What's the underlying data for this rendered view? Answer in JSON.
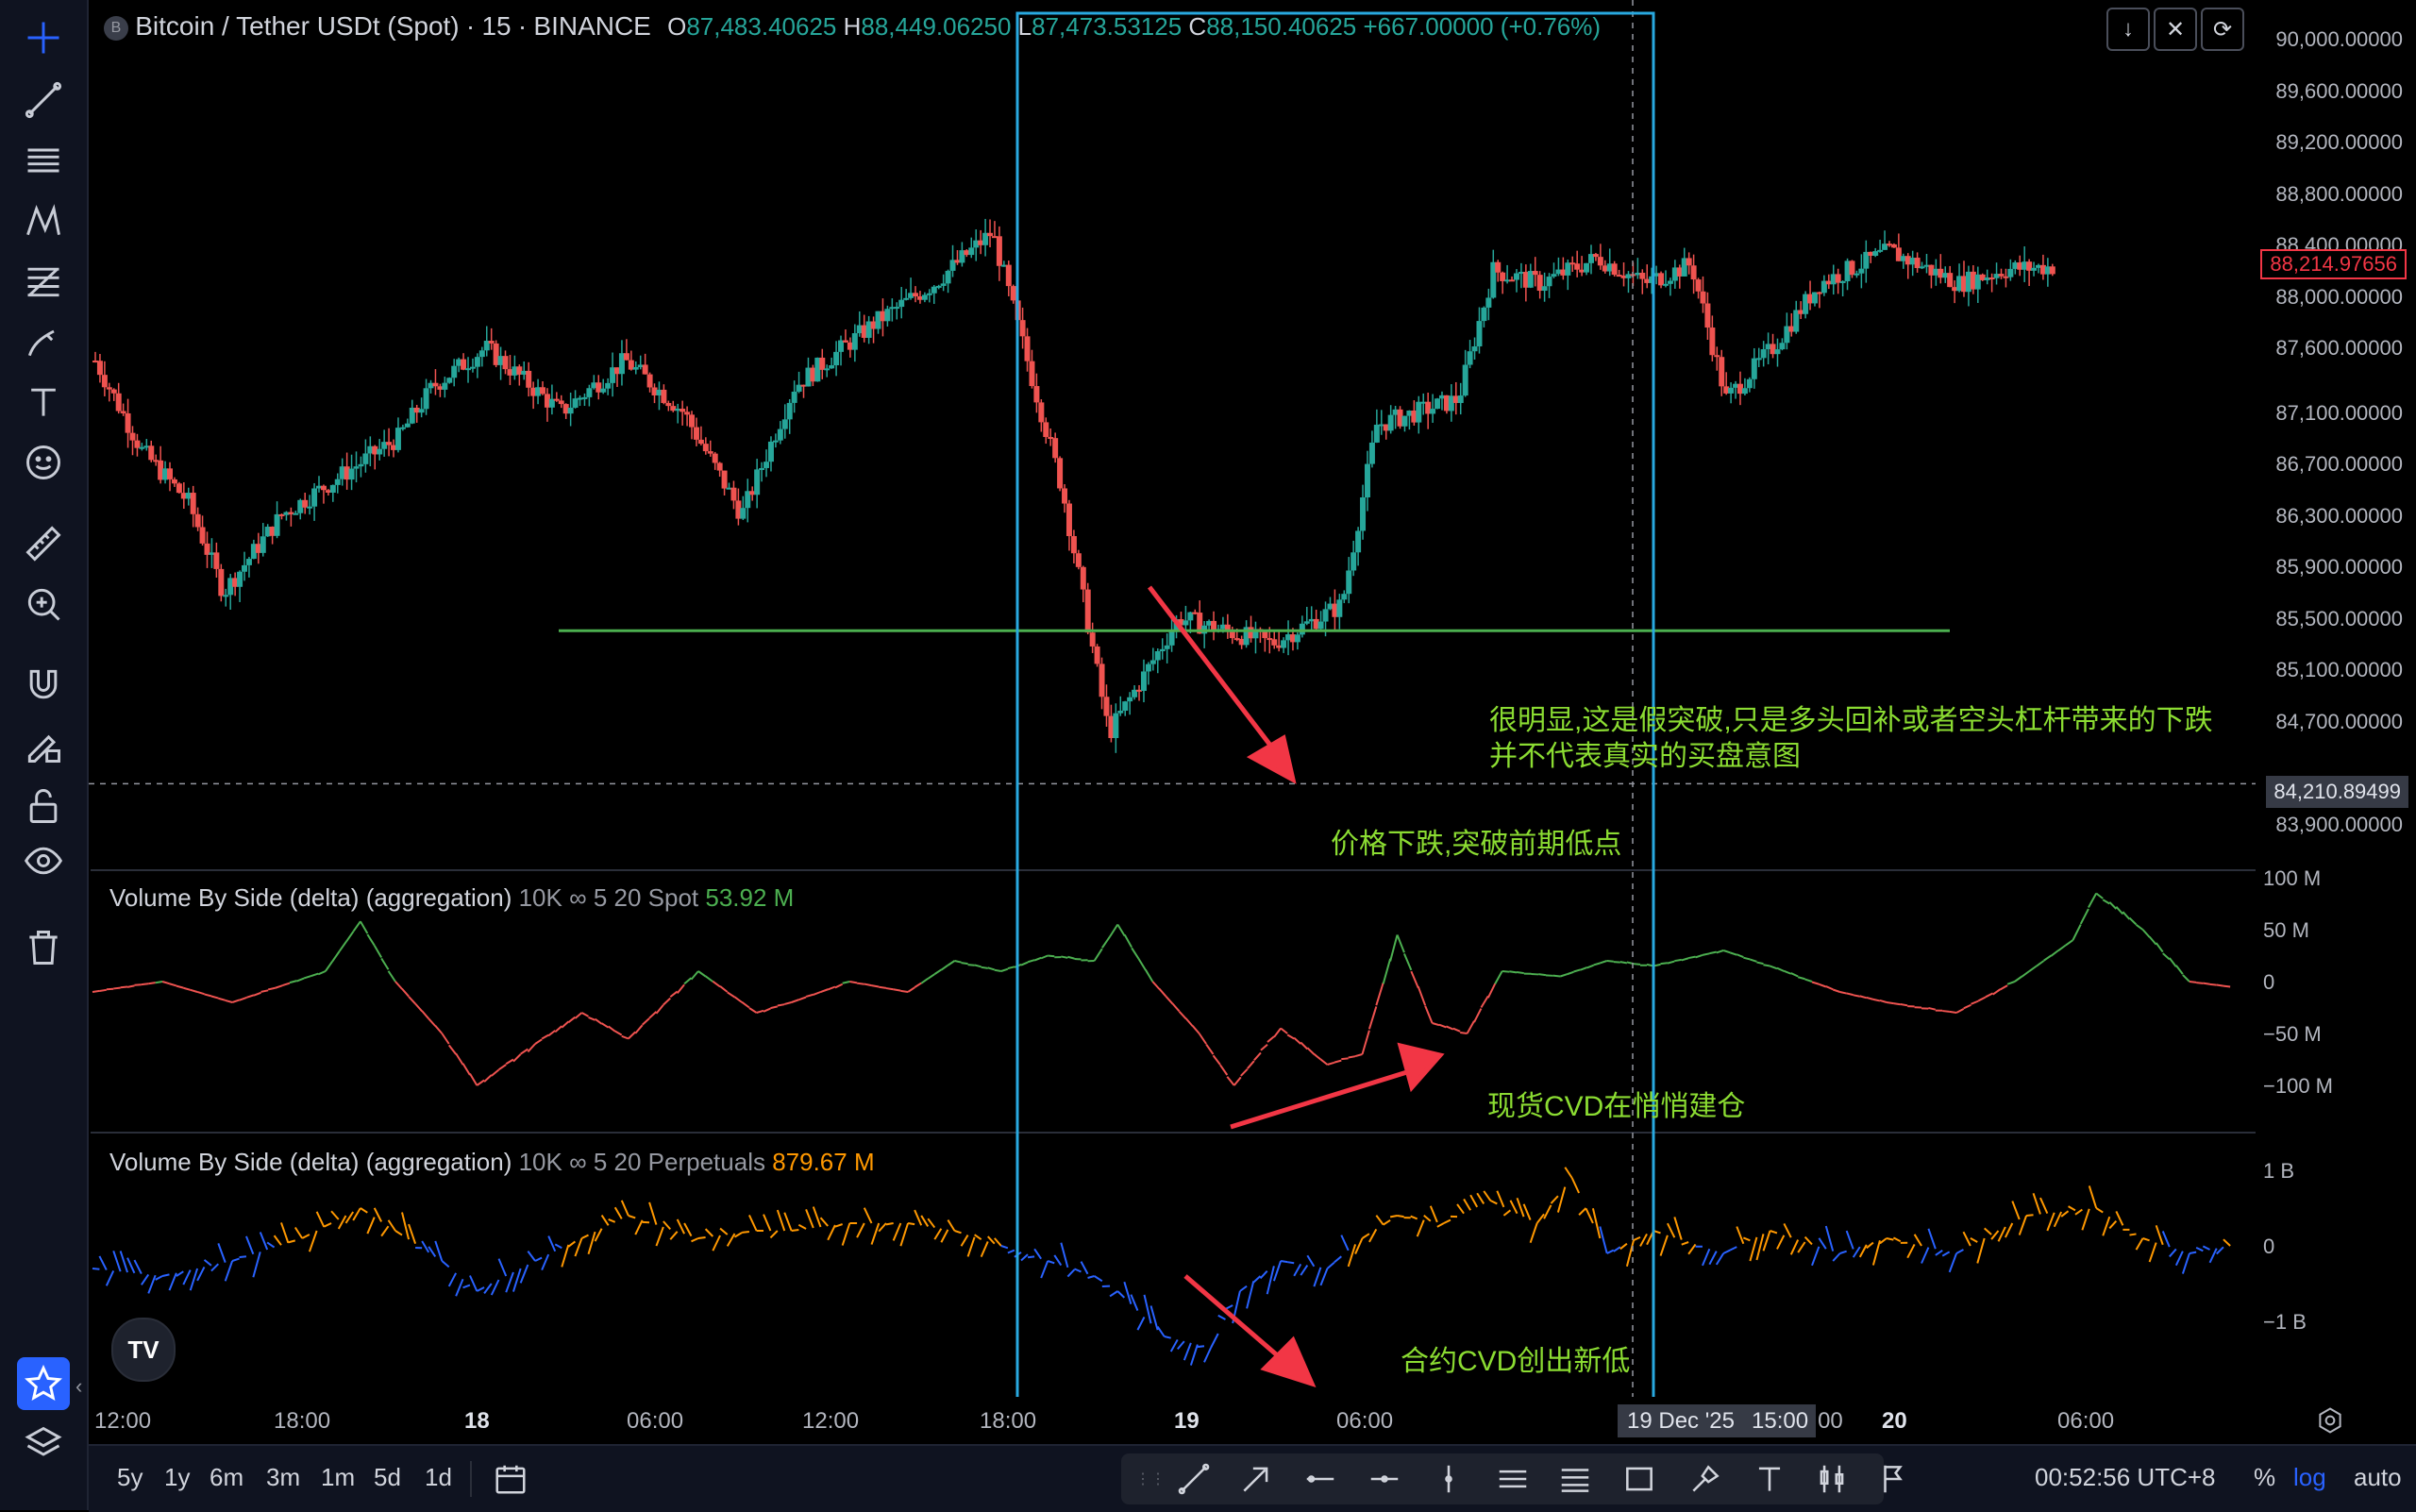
{
  "symbol": {
    "name": "Bitcoin / Tether USDt (Spot)",
    "interval": "15",
    "exchange": "BINANCE",
    "badge": "B"
  },
  "ohlc": {
    "o_label": "O",
    "o": "87,483.40625",
    "h_label": "H",
    "h": "88,449.06250",
    "l_label": "L",
    "l": "87,473.53125",
    "c_label": "C",
    "c": "88,150.40625",
    "change": "+667.00000 (+0.76%)"
  },
  "price_axis": {
    "ticks": [
      "90,000.00000",
      "89,600.00000",
      "89,200.00000",
      "88,800.00000",
      "88,400.00000",
      "88,000.00000",
      "87,600.00000",
      "87,100.00000",
      "86,700.00000",
      "86,300.00000",
      "85,900.00000",
      "85,500.00000",
      "85,100.00000",
      "84,700.00000",
      "83,900.00000"
    ],
    "current": "88,214.97656",
    "crosshair": "84,210.89499"
  },
  "pane1": {
    "title": "Volume By Side (delta) (aggregation)",
    "params": "10K ∞ 5 20 Spot",
    "value": "53.92 M",
    "ticks": [
      "100 M",
      "50 M",
      "0",
      "−50 M",
      "−100 M"
    ]
  },
  "pane2": {
    "title": "Volume By Side (delta) (aggregation)",
    "params": "10K ∞ 5 20 Perpetuals",
    "value": "879.67 M",
    "ticks": [
      "1 B",
      "0",
      "−1 B"
    ]
  },
  "annotations": {
    "fake_breakout_1": "很明显,这是假突破,只是多头回补或者空头杠杆带来的下跌",
    "fake_breakout_2": "并不代表真实的买盘意图",
    "price_drop": "价格下跌,突破前期低点",
    "spot_cvd": "现货CVD在悄悄建仓",
    "perp_cvd": "合约CVD创出新低"
  },
  "time_axis": {
    "labels": [
      "12:00",
      "18:00",
      "18",
      "06:00",
      "12:00",
      "18:00",
      "19",
      "06:00",
      "20",
      "06:00"
    ],
    "crosshair": "19 Dec '25",
    "crosshair_time": "15:00",
    "partial": "00"
  },
  "bottom": {
    "ranges": [
      "5y",
      "1y",
      "6m",
      "3m",
      "1m",
      "5d",
      "1d"
    ],
    "clock": "00:52:56 UTC+8",
    "percent": "%",
    "log": "log",
    "auto": "auto"
  },
  "logo": "TV",
  "colors": {
    "up": "#26a69a",
    "down": "#ef5350",
    "accent": "#2962ff",
    "annotation": "#8bdc32",
    "arrow": "#f23645",
    "box": "#29a9e0",
    "level": "#4caf50",
    "spot_up": "#4caf50",
    "spot_down": "#ef5350",
    "perp_up": "#ff9800",
    "perp_down": "#2962ff"
  },
  "left_toolbar_icons": [
    "crosshair-icon",
    "trend-line-icon",
    "horizontal-lines-icon",
    "pattern-icon",
    "fib-icon",
    "brush-icon",
    "text-icon",
    "emoji-icon",
    "ruler-icon",
    "zoom-in-icon",
    "magnet-icon",
    "lock-pencil-icon",
    "lock-icon",
    "eye-icon",
    "trash-icon",
    "star-icon",
    "layers-icon"
  ],
  "chart_data": {
    "type": "candlestick",
    "price_anchors": [
      [
        0,
        87500
      ],
      [
        40,
        86800
      ],
      [
        80,
        86400
      ],
      [
        110,
        85700
      ],
      [
        160,
        86300
      ],
      [
        210,
        86600
      ],
      [
        260,
        86900
      ],
      [
        290,
        87300
      ],
      [
        335,
        87600
      ],
      [
        400,
        87100
      ],
      [
        455,
        87500
      ],
      [
        505,
        87100
      ],
      [
        555,
        86300
      ],
      [
        600,
        87300
      ],
      [
        670,
        87800
      ],
      [
        720,
        88100
      ],
      [
        770,
        88500
      ],
      [
        830,
        86500
      ],
      [
        870,
        84600
      ],
      [
        930,
        85500
      ],
      [
        1010,
        85300
      ],
      [
        1070,
        85600
      ],
      [
        1100,
        87000
      ],
      [
        1170,
        87200
      ],
      [
        1200,
        88200
      ],
      [
        1240,
        88100
      ],
      [
        1290,
        88300
      ],
      [
        1330,
        88100
      ],
      [
        1370,
        88250
      ],
      [
        1400,
        87200
      ],
      [
        1440,
        87600
      ],
      [
        1480,
        88100
      ],
      [
        1540,
        88350
      ],
      [
        1600,
        88100
      ],
      [
        1640,
        88210
      ],
      [
        1680,
        88230
      ]
    ],
    "levels": {
      "support": 85400,
      "crosshair_price": 84210.89499
    },
    "spot_cvd_m": [
      [
        0,
        -10
      ],
      [
        60,
        0
      ],
      [
        120,
        -20
      ],
      [
        200,
        10
      ],
      [
        230,
        58
      ],
      [
        260,
        0
      ],
      [
        300,
        -50
      ],
      [
        330,
        -100
      ],
      [
        380,
        -60
      ],
      [
        420,
        -30
      ],
      [
        460,
        -55
      ],
      [
        520,
        10
      ],
      [
        570,
        -30
      ],
      [
        600,
        -20
      ],
      [
        650,
        0
      ],
      [
        700,
        -10
      ],
      [
        740,
        20
      ],
      [
        780,
        10
      ],
      [
        820,
        25
      ],
      [
        860,
        20
      ],
      [
        880,
        55
      ],
      [
        910,
        0
      ],
      [
        950,
        -50
      ],
      [
        980,
        -100
      ],
      [
        1020,
        -45
      ],
      [
        1060,
        -80
      ],
      [
        1090,
        -70
      ],
      [
        1120,
        45
      ],
      [
        1150,
        -40
      ],
      [
        1180,
        -50
      ],
      [
        1210,
        10
      ],
      [
        1260,
        5
      ],
      [
        1300,
        20
      ],
      [
        1340,
        15
      ],
      [
        1400,
        30
      ],
      [
        1440,
        15
      ],
      [
        1500,
        -10
      ],
      [
        1540,
        -20
      ],
      [
        1600,
        -30
      ],
      [
        1650,
        0
      ],
      [
        1700,
        40
      ],
      [
        1720,
        85
      ],
      [
        1760,
        50
      ],
      [
        1800,
        0
      ],
      [
        1835,
        -5
      ]
    ],
    "perp_cvd_b": [
      [
        0,
        -0.3
      ],
      [
        60,
        -0.4
      ],
      [
        120,
        -0.2
      ],
      [
        180,
        0.1
      ],
      [
        230,
        0.5
      ],
      [
        260,
        0.2
      ],
      [
        300,
        -0.2
      ],
      [
        330,
        -0.6
      ],
      [
        380,
        -0.2
      ],
      [
        420,
        0.1
      ],
      [
        460,
        0.4
      ],
      [
        520,
        0.1
      ],
      [
        570,
        0.2
      ],
      [
        600,
        0.2
      ],
      [
        650,
        0.3
      ],
      [
        700,
        0.3
      ],
      [
        740,
        0.2
      ],
      [
        780,
        0.0
      ],
      [
        820,
        -0.2
      ],
      [
        860,
        -0.4
      ],
      [
        880,
        -0.6
      ],
      [
        920,
        -1.2
      ],
      [
        960,
        -1.35
      ],
      [
        985,
        -0.6
      ],
      [
        1020,
        -0.2
      ],
      [
        1060,
        -0.3
      ],
      [
        1090,
        0.1
      ],
      [
        1120,
        0.4
      ],
      [
        1160,
        0.3
      ],
      [
        1200,
        0.6
      ],
      [
        1240,
        0.3
      ],
      [
        1270,
        0.9
      ],
      [
        1300,
        -0.1
      ],
      [
        1340,
        0.2
      ],
      [
        1400,
        -0.1
      ],
      [
        1440,
        0.2
      ],
      [
        1500,
        -0.1
      ],
      [
        1540,
        0.1
      ],
      [
        1600,
        -0.1
      ],
      [
        1660,
        0.4
      ],
      [
        1720,
        0.5
      ],
      [
        1760,
        0.1
      ],
      [
        1800,
        -0.1
      ],
      [
        1835,
        0.0
      ]
    ]
  }
}
